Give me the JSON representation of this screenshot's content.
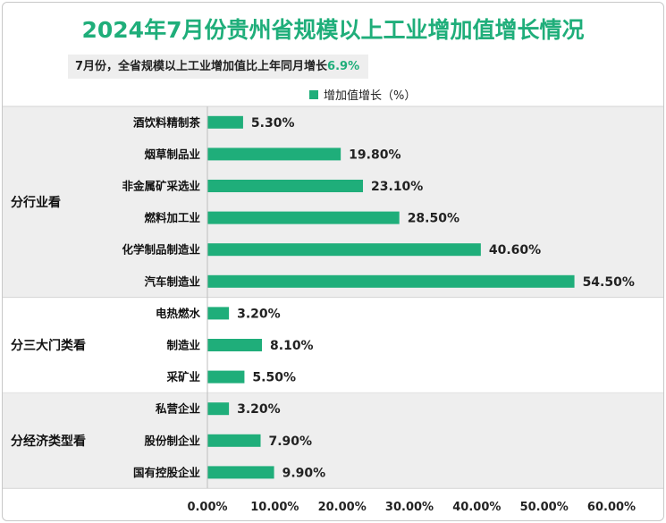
{
  "header": {
    "title": "2024年7月份贵州省规模以上工业增加值增长情况",
    "subtitle_prefix": "7月份，全省规模以上工业增加值比上年同月增长",
    "subtitle_value": "6.9%"
  },
  "colors": {
    "accent": "#1fae7a",
    "band": "#eeeeee"
  },
  "chart_data": {
    "type": "bar",
    "orientation": "horizontal",
    "legend": {
      "label": "增加值增长（%）",
      "position": "top"
    },
    "xlim": [
      0,
      60
    ],
    "x_ticks": [
      "0.00%",
      "10.00%",
      "20.00%",
      "30.00%",
      "40.00%",
      "50.00%",
      "60.00%"
    ],
    "groups": [
      {
        "label": "分行业看",
        "categories": [
          "酒饮料精制茶",
          "烟草制品业",
          "非金属矿采选业",
          "燃料加工业",
          "化学制品制造业",
          "汽车制造业"
        ],
        "values": [
          5.3,
          19.8,
          23.1,
          28.5,
          40.6,
          54.5
        ],
        "value_labels": [
          "5.30%",
          "19.80%",
          "23.10%",
          "28.50%",
          "40.60%",
          "54.50%"
        ]
      },
      {
        "label": "分三大门类看",
        "categories": [
          "电热燃水",
          "制造业",
          "采矿业"
        ],
        "values": [
          3.2,
          8.1,
          5.5
        ],
        "value_labels": [
          "3.20%",
          "8.10%",
          "5.50%"
        ]
      },
      {
        "label": "分经济类型看",
        "categories": [
          "私营企业",
          "股份制企业",
          "国有控股企业"
        ],
        "values": [
          3.2,
          7.9,
          9.9
        ],
        "value_labels": [
          "3.20%",
          "7.90%",
          "9.90%"
        ]
      }
    ]
  }
}
